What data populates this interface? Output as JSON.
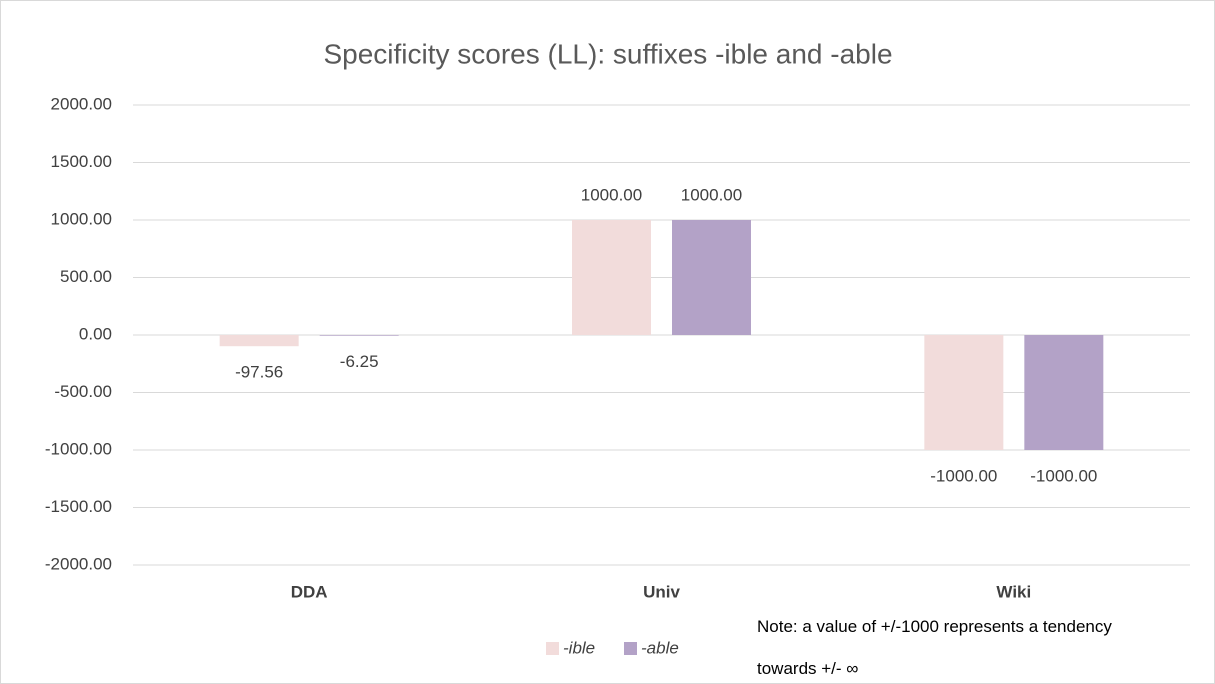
{
  "chart_data": {
    "type": "bar",
    "title": "Specificity scores (LL): suffixes -ible and -able",
    "categories": [
      "DDA",
      "Univ",
      "Wiki"
    ],
    "series": [
      {
        "name": "-ible",
        "color": "#f2dcdb",
        "values": [
          -97.56,
          1000,
          -1000
        ],
        "value_labels": [
          "-97.56",
          "1000.00",
          "-1000.00"
        ]
      },
      {
        "name": "-able",
        "color": "#b3a2c7",
        "values": [
          -6.25,
          1000,
          -1000
        ],
        "value_labels": [
          "-6.25",
          "1000.00",
          "-1000.00"
        ]
      }
    ],
    "ylim": [
      -2000,
      2000
    ],
    "yticks": [
      {
        "value": -2000,
        "label": "-2000.00"
      },
      {
        "value": -1500,
        "label": "-1500.00"
      },
      {
        "value": -1000,
        "label": "-1000.00"
      },
      {
        "value": -500,
        "label": "-500.00"
      },
      {
        "value": 0,
        "label": "0.00"
      },
      {
        "value": 500,
        "label": "500.00"
      },
      {
        "value": 1000,
        "label": "1000.00"
      },
      {
        "value": 1500,
        "label": "1500.00"
      },
      {
        "value": 2000,
        "label": "2000.00"
      }
    ],
    "grid": true,
    "legend": "bottom",
    "annotation": "Note: a value of +/-1000 represents a tendency towards +/- ∞"
  }
}
